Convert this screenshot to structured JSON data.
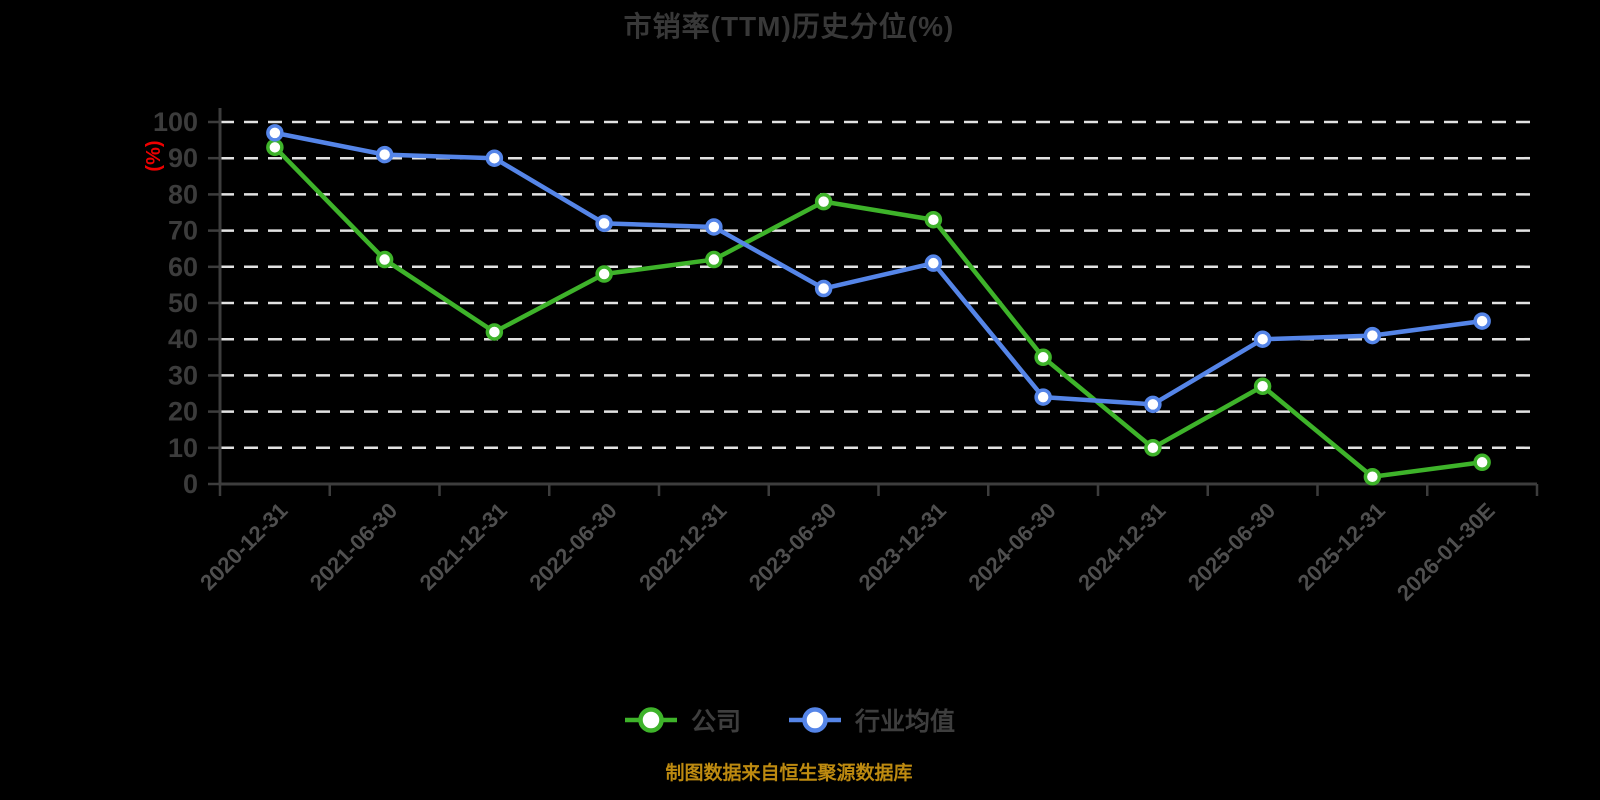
{
  "title": "市销率(TTM)历史分位(%)",
  "y_axis_unit": "(%)",
  "footer": "制图数据来自恒生聚源数据库",
  "legend": [
    {
      "label": "公司",
      "color": "#3eb32a"
    },
    {
      "label": "行业均值",
      "color": "#5585e8"
    }
  ],
  "appearance": {
    "background": "#000000",
    "title_color": "#383838",
    "axis_color": "#3d3d3d",
    "y_label_color": "#3c3c3c",
    "x_label_color": "#4f4f4f",
    "grid_color": "#e2e2e2",
    "unit_label_color": "#ee0000",
    "footer_color": "#bd8a10",
    "marker_fill": "#ffffff"
  },
  "chart_data": {
    "type": "line",
    "title": "市销率(TTM)历史分位(%)",
    "ylabel": "(%)",
    "xlabel": "",
    "ylim": [
      0,
      100
    ],
    "y_ticks": [
      0,
      10,
      20,
      30,
      40,
      50,
      60,
      70,
      80,
      90,
      100
    ],
    "grid": true,
    "grid_style": "dashed",
    "legend_position": "bottom",
    "categories": [
      "2020-12-31",
      "2021-06-30",
      "2021-12-31",
      "2022-06-30",
      "2022-12-31",
      "2023-06-30",
      "2023-12-31",
      "2024-06-30",
      "2024-12-31",
      "2025-06-30",
      "2025-12-31",
      "2026-01-30E"
    ],
    "series": [
      {
        "name": "公司",
        "color": "#3eb32a",
        "values": [
          93,
          62,
          42,
          58,
          62,
          78,
          73,
          35,
          10,
          27,
          2,
          6
        ]
      },
      {
        "name": "行业均值",
        "color": "#5585e8",
        "values": [
          97,
          91,
          90,
          72,
          71,
          54,
          61,
          24,
          22,
          40,
          41,
          45
        ]
      }
    ]
  }
}
